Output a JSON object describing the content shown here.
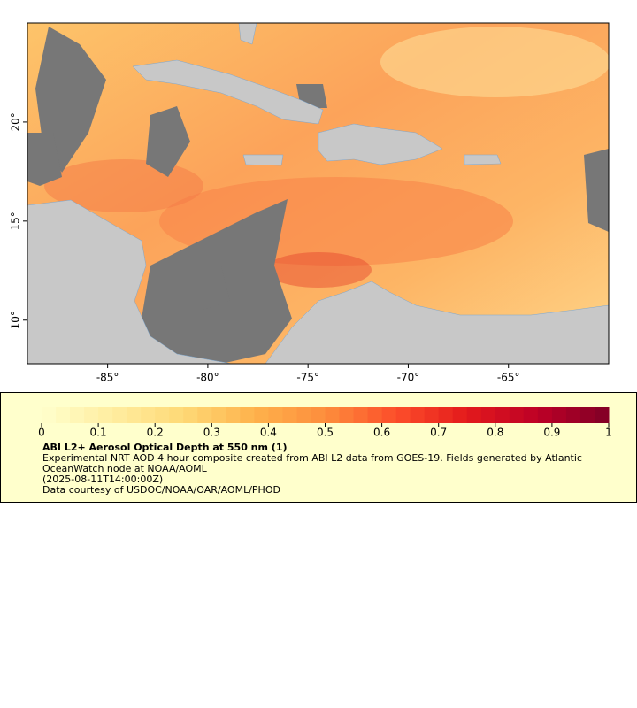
{
  "map": {
    "lon_range": [
      -89,
      -60
    ],
    "lat_range": [
      7.8,
      25
    ],
    "lon_ticks": [
      {
        "value": -85,
        "label": "-85°"
      },
      {
        "value": -80,
        "label": "-80°"
      },
      {
        "value": -75,
        "label": "-75°"
      },
      {
        "value": -70,
        "label": "-70°"
      },
      {
        "value": -65,
        "label": "-65°"
      }
    ],
    "lat_ticks": [
      {
        "value": 20,
        "label": "20°"
      },
      {
        "value": 15,
        "label": "15°"
      },
      {
        "value": 10,
        "label": "10°"
      }
    ]
  },
  "colorbar": {
    "range": [
      0,
      1
    ],
    "ticks": [
      0,
      0.1,
      0.2,
      0.3,
      0.4,
      0.5,
      0.6,
      0.7,
      0.8,
      0.9,
      1
    ],
    "colors": [
      "#ffffcc",
      "#ffeda0",
      "#fed976",
      "#feb24c",
      "#fd8d3c",
      "#fc4e2a",
      "#e31a1c",
      "#bd0026",
      "#800026"
    ]
  },
  "caption": {
    "title": "ABI L2+ Aerosol Optical Depth at 550 nm (1)",
    "description": "Experimental NRT AOD 4 hour composite created from ABI L2 data from GOES-19. Fields generated by Atlantic OceanWatch node at NOAA/AOML",
    "timestamp": "(2025-08-11T14:00:00Z)",
    "credit": "Data courtesy of USDOC/NOAA/OAR/AOML/PHOD"
  }
}
